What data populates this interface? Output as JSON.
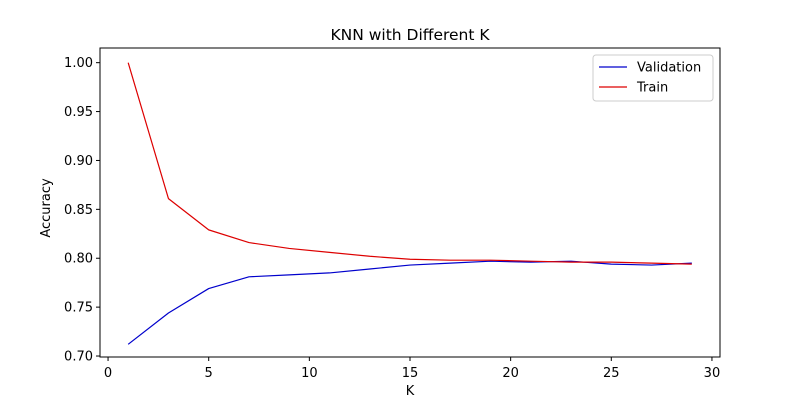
{
  "chart_data": {
    "type": "line",
    "title": "KNN with Different K",
    "xlabel": "K",
    "ylabel": "Accuracy",
    "xlim": [
      -0.4,
      30.4
    ],
    "ylim": [
      0.699,
      1.015
    ],
    "xticks": [
      0,
      5,
      10,
      15,
      20,
      25,
      30
    ],
    "yticks": [
      0.7,
      0.75,
      0.8,
      0.85,
      0.9,
      0.95,
      1.0
    ],
    "xtick_labels": [
      "0",
      "5",
      "10",
      "15",
      "20",
      "25",
      "30"
    ],
    "ytick_labels": [
      "0.70",
      "0.75",
      "0.80",
      "0.85",
      "0.90",
      "0.95",
      "1.00"
    ],
    "grid": false,
    "legend_position": "top-right",
    "x": [
      1,
      3,
      5,
      7,
      9,
      11,
      13,
      15,
      17,
      19,
      21,
      23,
      25,
      27,
      29
    ],
    "series": [
      {
        "name": "Validation",
        "color": "#0000cc",
        "values": [
          0.712,
          0.744,
          0.769,
          0.781,
          0.783,
          0.785,
          0.789,
          0.793,
          0.795,
          0.797,
          0.796,
          0.797,
          0.794,
          0.793,
          0.795
        ]
      },
      {
        "name": "Train",
        "color": "#dd0000",
        "values": [
          1.0,
          0.861,
          0.829,
          0.816,
          0.81,
          0.806,
          0.802,
          0.799,
          0.798,
          0.798,
          0.797,
          0.796,
          0.796,
          0.795,
          0.794
        ]
      }
    ]
  }
}
